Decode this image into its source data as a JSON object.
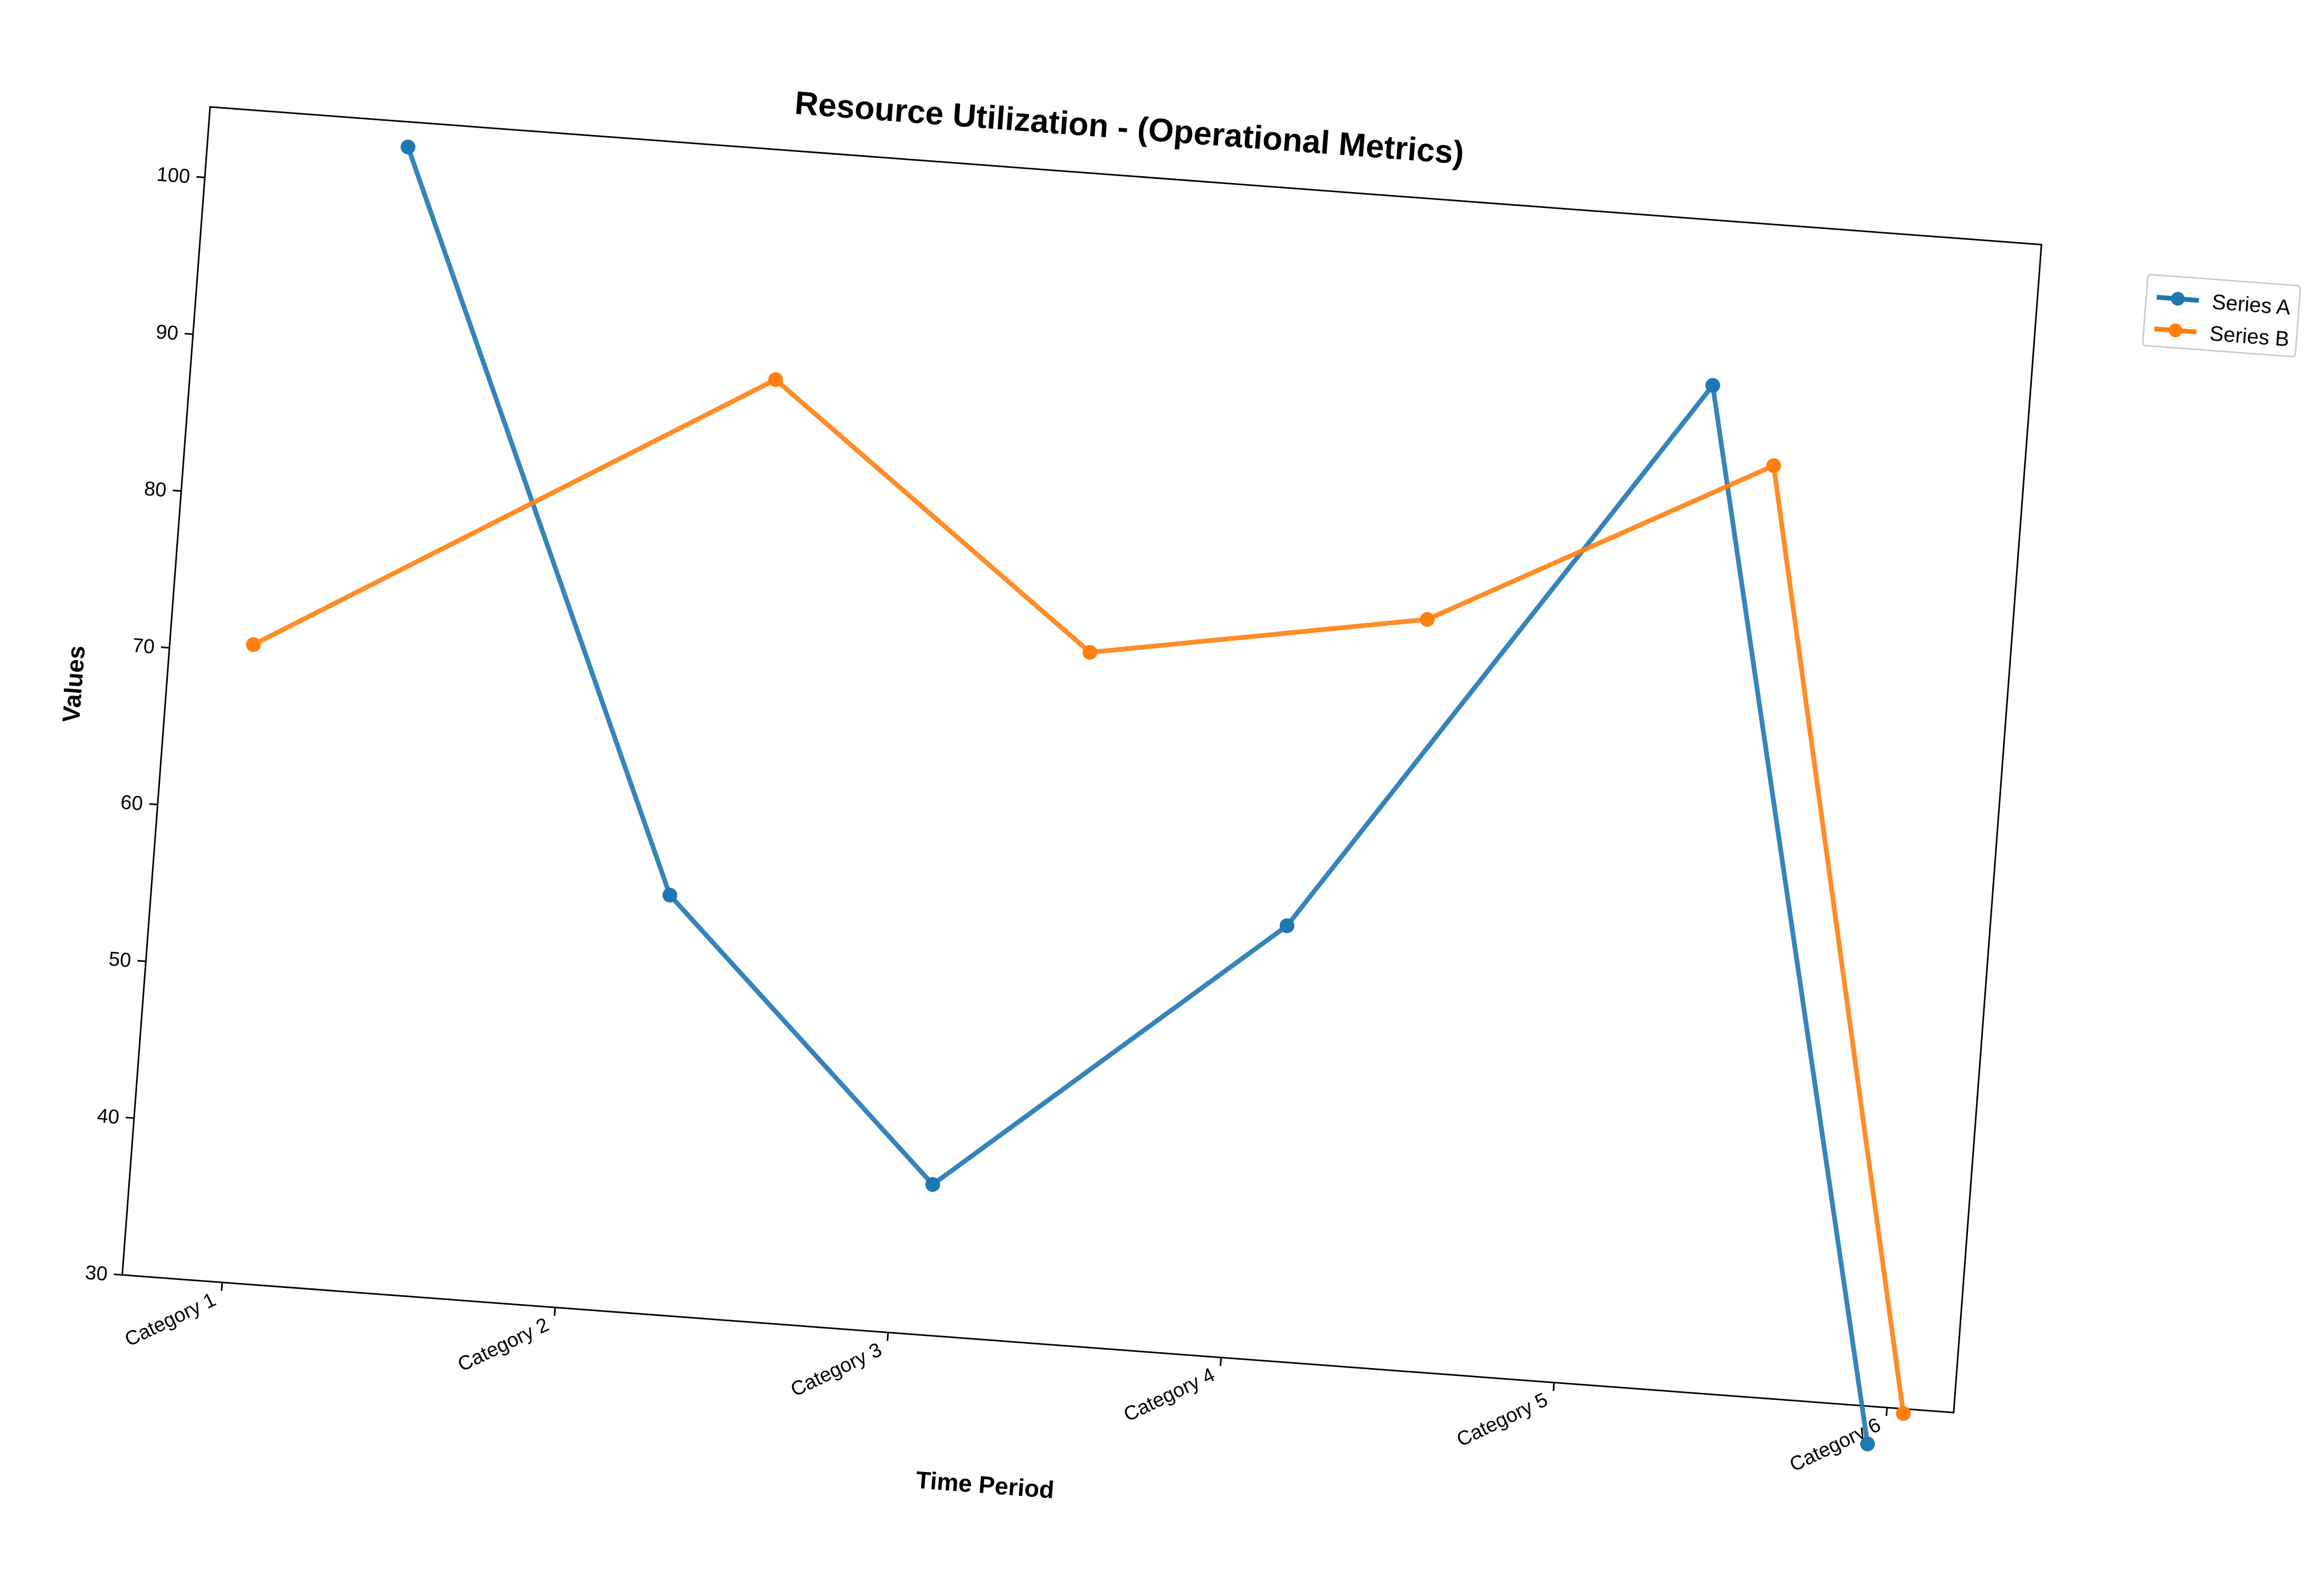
{
  "chart_data": {
    "type": "line",
    "title": "Resource Utilization - (Operational Metrics)",
    "xlabel": "Time Period",
    "ylabel": "Values",
    "categories": [
      "Category 1",
      "Category 2",
      "Category 3",
      "Category 4",
      "Category 5",
      "Category 6"
    ],
    "x": [
      0.3,
      1.25,
      2.1,
      3.1,
      4.25,
      4.95
    ],
    "series": [
      {
        "name": "Series A",
        "color": "#1f77b4",
        "x": [
          0.3,
          1.25,
          2.1,
          3.1,
          4.25,
          4.95
        ],
        "values": [
          102.9,
          56.7,
          39.6,
          57.7,
          94.0,
          27.6
        ]
      },
      {
        "name": "Series B",
        "color": "#ff7f0e",
        "x": [
          -0.05,
          1.45,
          2.45,
          3.45,
          4.45,
          5.05
        ],
        "values": [
          70.6,
          89.9,
          74.1,
          77.8,
          89.2,
          29.7
        ]
      }
    ],
    "yticks": [
      30,
      40,
      50,
      60,
      70,
      80,
      90,
      100
    ],
    "ylim": [
      30,
      104.5
    ],
    "xlim": [
      -0.3,
      5.2
    ],
    "grid": false,
    "legend_position": "outside-top-right"
  }
}
